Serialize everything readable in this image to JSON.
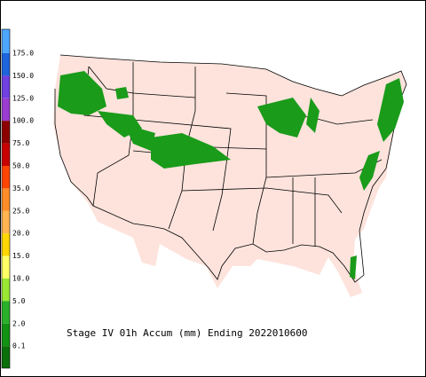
{
  "legend": {
    "levels": [
      "175.0",
      "150.0",
      "125.0",
      "100.0",
      "75.0",
      "50.0",
      "35.0",
      "25.0",
      "20.0",
      "15.0",
      "10.0",
      "5.0",
      "2.0",
      "0.1"
    ]
  },
  "title": "Stage IV 01h Accum (mm) Ending 2022010600"
}
